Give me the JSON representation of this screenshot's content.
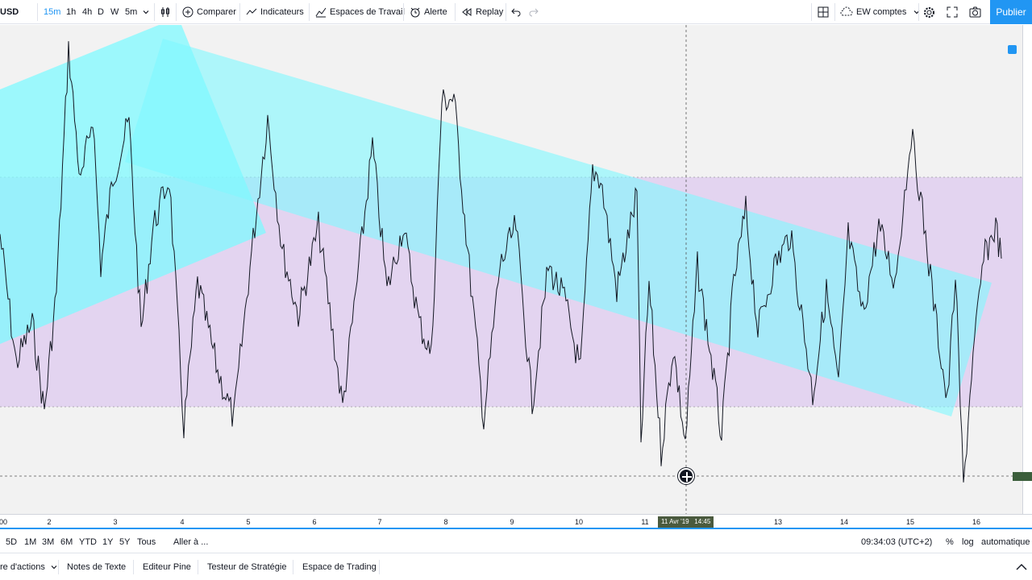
{
  "toolbar": {
    "symbol": "USD",
    "timeframes": [
      "15m",
      "1h",
      "4h",
      "D",
      "W",
      "5m"
    ],
    "active_timeframe": "15m",
    "compare_label": "Comparer",
    "indicators_label": "Indicateurs",
    "workspaces_label": "Espaces de Travail",
    "alert_label": "Alerte",
    "replay_label": "Replay",
    "layout_label": "EW comptes",
    "publish_label": "Publier"
  },
  "date_axis": {
    "labels": [
      "00",
      "2",
      "3",
      "4",
      "5",
      "6",
      "7",
      "8",
      "9",
      "10",
      "11",
      "13",
      "14",
      "15",
      "16"
    ],
    "cursor_date": "11 Avr '19",
    "cursor_time": "14:45"
  },
  "range_bar": {
    "ranges": [
      "5D",
      "1M",
      "3M",
      "6M",
      "YTD",
      "1Y",
      "5Y",
      "Tous"
    ],
    "goto_label": "Aller à ...",
    "clock": "09:34:03 (UTC+2)",
    "percent_label": "%",
    "log_label": "log",
    "auto_label": "automatique"
  },
  "bottom_tabs": {
    "items": [
      "re d'actions",
      "Notes de Texte",
      "Editeur Pine",
      "Testeur de Stratégie",
      "Espace de Trading"
    ]
  },
  "colors": {
    "accent": "#2196f3",
    "cyan_shape": "#7ff9ff",
    "range_box": "#e3d4f0",
    "chart_bg": "#f2f2f2",
    "price_line": "#131722"
  }
}
